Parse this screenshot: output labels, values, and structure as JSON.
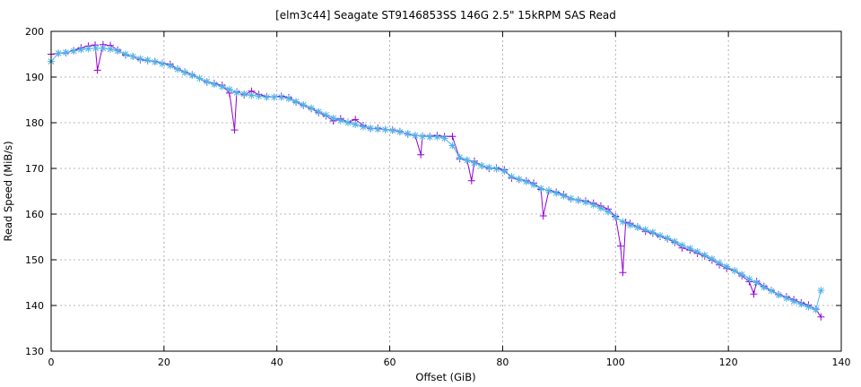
{
  "chart_data": {
    "type": "line",
    "title": "[elm3c44] Seagate ST9146853SS 146G 2.5\" 15kRPM SAS Read",
    "xlabel": "Offset (GiB)",
    "ylabel": "Read Speed (MiB/s)",
    "xlim": [
      0,
      140
    ],
    "ylim": [
      130,
      200
    ],
    "x_ticks": [
      "0",
      "20",
      "40",
      "60",
      "80",
      "100",
      "120",
      "140"
    ],
    "y_ticks": [
      "130",
      "140",
      "150",
      "160",
      "170",
      "180",
      "190",
      "200"
    ],
    "grid": true,
    "legend": "none",
    "colors": {
      "raw": "#9400d3",
      "average": "#4fb5e6"
    },
    "series": [
      {
        "marker": "plus",
        "x": [
          0.0,
          1.3,
          2.6,
          4.0,
          5.3,
          6.6,
          7.8,
          8.2,
          9.2,
          10.5,
          11.8,
          13.2,
          14.5,
          15.8,
          17.1,
          18.4,
          19.7,
          21.1,
          22.4,
          23.7,
          25.0,
          26.3,
          27.6,
          28.9,
          30.3,
          31.6,
          32.5,
          32.9,
          34.2,
          35.5,
          36.8,
          38.2,
          39.5,
          40.8,
          42.1,
          43.4,
          44.7,
          46.1,
          47.4,
          48.7,
          50.0,
          51.3,
          52.6,
          53.9,
          55.3,
          56.6,
          57.9,
          59.2,
          60.5,
          61.8,
          63.2,
          64.5,
          65.5,
          65.8,
          67.1,
          68.4,
          69.7,
          71.1,
          72.4,
          73.7,
          74.5,
          75.0,
          76.3,
          77.6,
          78.9,
          80.3,
          81.6,
          82.9,
          84.2,
          85.5,
          86.8,
          87.2,
          88.2,
          89.5,
          90.8,
          92.1,
          93.4,
          94.7,
          96.1,
          97.4,
          98.7,
          100.0,
          100.9,
          101.3,
          101.8,
          102.6,
          103.9,
          105.3,
          106.6,
          107.9,
          109.2,
          110.5,
          111.8,
          113.2,
          114.5,
          115.8,
          117.1,
          118.4,
          119.7,
          121.1,
          122.4,
          123.7,
          124.5,
          125.0,
          126.3,
          127.6,
          128.9,
          130.3,
          131.6,
          132.9,
          134.2,
          135.5,
          136.4
        ],
        "y": [
          195.0,
          195.2,
          195.3,
          195.8,
          196.4,
          196.8,
          197.0,
          191.5,
          197.1,
          196.9,
          195.9,
          194.8,
          194.5,
          193.8,
          193.6,
          193.4,
          193.0,
          192.8,
          191.8,
          191.1,
          190.5,
          189.7,
          188.9,
          188.6,
          188.2,
          186.5,
          178.4,
          186.8,
          186.1,
          186.9,
          186.2,
          185.7,
          185.6,
          185.8,
          185.5,
          184.5,
          183.8,
          183.1,
          182.2,
          181.5,
          180.4,
          180.9,
          180.1,
          180.7,
          179.4,
          178.7,
          178.8,
          178.5,
          178.4,
          178.1,
          177.5,
          177.2,
          173.0,
          177.1,
          177.0,
          177.2,
          177.0,
          177.0,
          172.1,
          171.8,
          167.3,
          171.6,
          170.6,
          170.0,
          170.1,
          169.7,
          167.9,
          167.6,
          167.3,
          166.8,
          165.4,
          159.6,
          165.2,
          164.8,
          164.3,
          163.3,
          163.1,
          162.9,
          162.4,
          161.8,
          161.1,
          159.5,
          153.0,
          147.2,
          158.2,
          158.0,
          157.2,
          156.2,
          155.8,
          155.1,
          154.6,
          153.8,
          152.6,
          152.1,
          151.4,
          150.8,
          149.9,
          148.9,
          148.1,
          147.6,
          146.5,
          145.2,
          142.5,
          145.3,
          144.2,
          143.3,
          142.4,
          141.9,
          141.3,
          140.6,
          140.1,
          139.2,
          137.5
        ]
      },
      {
        "marker": "star",
        "x": [
          0.0,
          1.3,
          2.6,
          4.0,
          5.3,
          6.6,
          7.9,
          9.2,
          10.5,
          11.8,
          13.2,
          14.5,
          15.8,
          17.1,
          18.4,
          19.7,
          21.1,
          22.4,
          23.7,
          25.0,
          26.3,
          27.6,
          28.9,
          30.3,
          31.6,
          32.9,
          34.2,
          35.5,
          36.8,
          38.2,
          39.5,
          40.8,
          42.1,
          43.4,
          44.7,
          46.1,
          47.4,
          48.7,
          50.0,
          51.3,
          52.6,
          53.9,
          55.3,
          56.6,
          57.9,
          59.2,
          60.5,
          61.8,
          63.2,
          64.5,
          65.8,
          67.1,
          68.4,
          69.7,
          71.1,
          72.4,
          73.7,
          75.0,
          76.3,
          77.6,
          78.9,
          80.3,
          81.6,
          82.9,
          84.2,
          85.5,
          86.8,
          88.2,
          89.5,
          90.8,
          92.1,
          93.4,
          94.7,
          96.1,
          97.4,
          98.7,
          100.0,
          101.3,
          102.6,
          103.9,
          105.3,
          106.6,
          107.9,
          109.2,
          110.5,
          111.8,
          113.2,
          114.5,
          115.8,
          117.1,
          118.4,
          119.7,
          121.1,
          122.4,
          123.7,
          125.0,
          126.3,
          127.6,
          128.9,
          130.3,
          131.6,
          132.9,
          134.2,
          135.5,
          136.4
        ],
        "y": [
          193.4,
          195.2,
          195.4,
          195.7,
          196.0,
          196.2,
          196.3,
          196.3,
          196.1,
          195.7,
          195.0,
          194.5,
          194.0,
          193.7,
          193.3,
          192.9,
          192.5,
          191.7,
          191.0,
          190.4,
          189.7,
          189.0,
          188.4,
          187.9,
          187.3,
          186.6,
          186.3,
          186.0,
          185.8,
          185.6,
          185.6,
          185.6,
          185.3,
          184.6,
          183.9,
          183.2,
          182.4,
          181.7,
          181.0,
          180.5,
          180.0,
          179.6,
          179.1,
          178.8,
          178.6,
          178.5,
          178.3,
          178.0,
          177.6,
          177.2,
          177.0,
          176.9,
          176.9,
          176.6,
          175.0,
          172.4,
          171.8,
          171.2,
          170.6,
          170.2,
          169.9,
          169.4,
          168.2,
          167.6,
          167.1,
          166.4,
          165.6,
          165.1,
          164.6,
          164.0,
          163.4,
          163.0,
          162.6,
          162.0,
          161.3,
          160.5,
          159.3,
          158.3,
          157.6,
          157.1,
          156.6,
          156.0,
          155.3,
          154.7,
          154.0,
          153.2,
          152.5,
          151.8,
          151.0,
          150.2,
          149.3,
          148.5,
          147.6,
          146.8,
          145.8,
          145.0,
          144.0,
          143.2,
          142.3,
          141.6,
          140.9,
          140.3,
          139.7,
          139.1,
          143.3
        ]
      }
    ]
  }
}
